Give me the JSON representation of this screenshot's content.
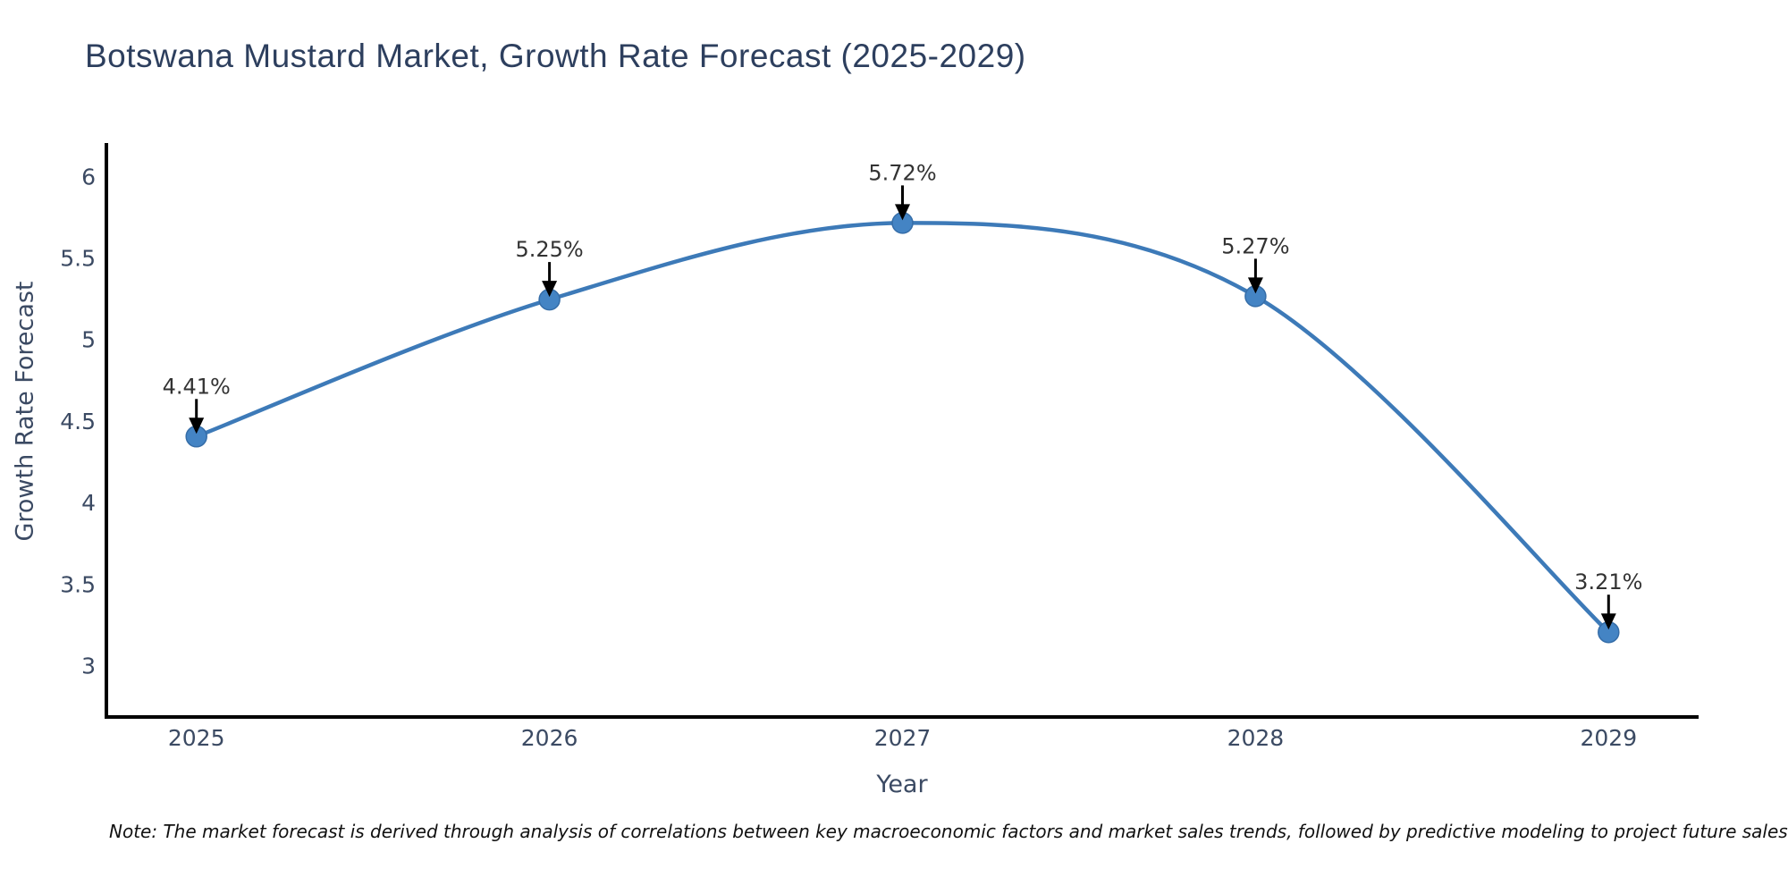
{
  "chart": {
    "title": "Botswana Mustard Market, Growth Rate Forecast (2025-2029)",
    "xlabel": "Year",
    "ylabel": "Growth Rate Forecast"
  },
  "chart_data": {
    "type": "line",
    "title": "Botswana Mustard Market, Growth Rate Forecast (2025-2029)",
    "xlabel": "Year",
    "ylabel": "Growth Rate Forecast",
    "x": [
      2025,
      2026,
      2027,
      2028,
      2029
    ],
    "x_tick_labels": [
      "2025",
      "2026",
      "2027",
      "2028",
      "2029"
    ],
    "values": [
      4.41,
      5.25,
      5.72,
      5.27,
      3.21
    ],
    "point_labels": [
      "4.41%",
      "5.25%",
      "5.72%",
      "5.27%",
      "3.21%"
    ],
    "y_ticks": [
      3,
      3.5,
      4,
      4.5,
      5,
      5.5,
      6
    ],
    "y_tick_labels": [
      "3",
      "3.5",
      "4",
      "4.5",
      "5",
      "5.5",
      "6"
    ],
    "ylim": [
      2.69,
      6.21
    ],
    "xlim": [
      2024.745,
      2029.255
    ],
    "grid": false,
    "legend": false,
    "line_shape": "spline",
    "colors": {
      "line": "#3d7ab8",
      "marker": "#4484c4",
      "marker_edge": "#356da8",
      "axis": "#000000",
      "tick_text": "#3b4a63",
      "title_text": "#2d3f5e",
      "annotation_text": "#333333",
      "arrow": "#000000",
      "background": "#ffffff"
    }
  },
  "note": {
    "text": "Note: The market forecast is derived through analysis of correlations between key macroeconomic factors and market sales trends, followed by predictive modeling to project future sales"
  }
}
